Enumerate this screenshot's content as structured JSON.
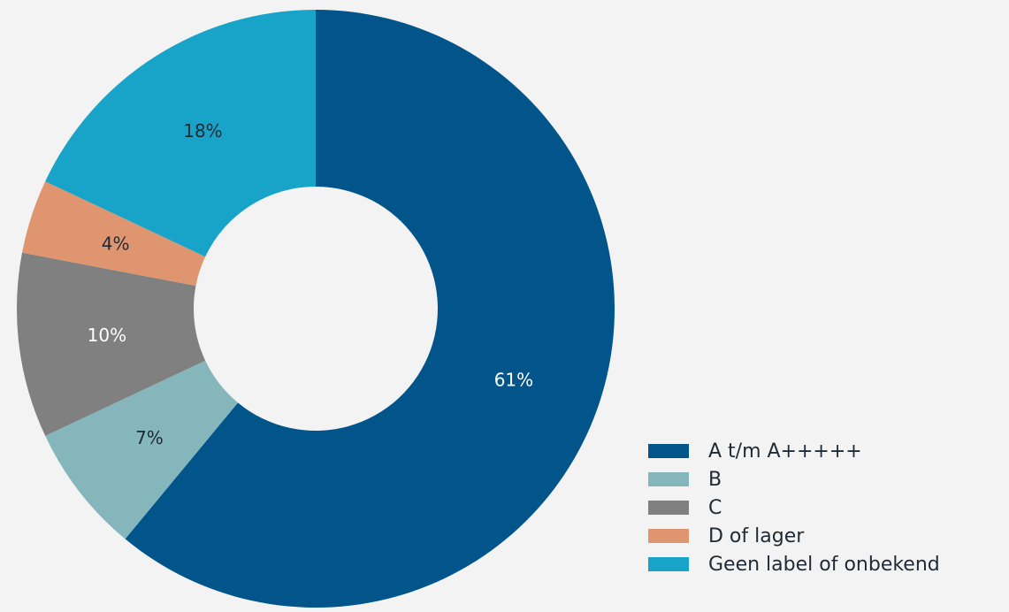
{
  "chart_data": {
    "type": "pie",
    "variant": "donut",
    "title": "",
    "categories": [
      "A t/m A+++++",
      "B",
      "C",
      "D of lager",
      "Geen label of onbekend"
    ],
    "values": [
      61,
      7,
      10,
      4,
      18
    ],
    "value_labels": [
      "61%",
      "7%",
      "10%",
      "4%",
      "18%"
    ],
    "colors": [
      "#02558b",
      "#84b6bb",
      "#808080",
      "#df9670",
      "#18a3c9"
    ],
    "label_colors": [
      "#ffffff",
      "#1f2a36",
      "#ffffff",
      "#1f2a36",
      "#1f2a36"
    ],
    "start": "top, clockwise",
    "legend_position": "bottom-right"
  },
  "background_color": "#f3f3f3"
}
